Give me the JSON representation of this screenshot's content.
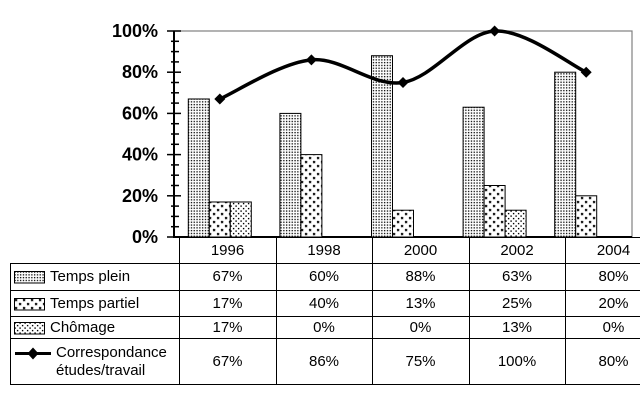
{
  "chart_data": {
    "type": "combo",
    "title": "",
    "categories": [
      "1996",
      "1998",
      "2000",
      "2002",
      "2004"
    ],
    "series": [
      {
        "name": "Temps plein",
        "type": "bar",
        "pattern": "dense-dots",
        "values": [
          67,
          60,
          88,
          63,
          80
        ]
      },
      {
        "name": "Temps partiel",
        "type": "bar",
        "pattern": "sparse-crosses",
        "values": [
          17,
          40,
          13,
          25,
          20
        ]
      },
      {
        "name": "Chômage",
        "type": "bar",
        "pattern": "speckle-dots",
        "values": [
          17,
          0,
          0,
          13,
          0
        ]
      },
      {
        "name": "Correspondance études/travail",
        "type": "line",
        "marker": "diamond",
        "values": [
          67,
          86,
          75,
          100,
          80
        ]
      }
    ],
    "ylim": [
      0,
      100
    ],
    "ytick_step": 20,
    "yminor_step": 5,
    "ytick_labels": [
      "0%",
      "20%",
      "40%",
      "60%",
      "80%",
      "100%"
    ],
    "value_suffix": "%",
    "grid": false,
    "legend_position": "table-left",
    "xlabel": "",
    "ylabel": ""
  },
  "colors": {
    "background": "#ffffff",
    "ink": "#000000",
    "plot_border": "#808080",
    "bar_fill": "#ffffff",
    "table_border": "#000000"
  }
}
